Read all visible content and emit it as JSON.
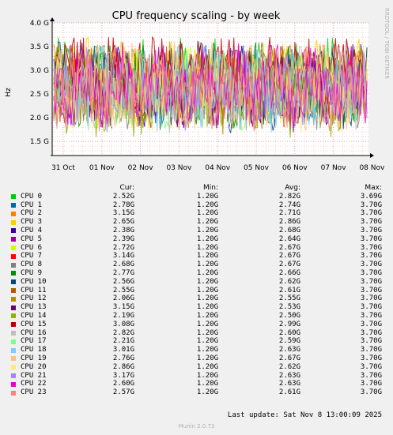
{
  "chart_data": {
    "type": "line",
    "title": "CPU frequency scaling - by week",
    "ylabel": "Hz",
    "side_label": "RRDTOOL / TOBI OETIKER",
    "y_ticks": [
      "1.5 G",
      "2.0 G",
      "2.5 G",
      "3.0 G",
      "3.5 G",
      "4.0 G"
    ],
    "ylim": [
      1.2,
      4.0
    ],
    "x_ticks": [
      "31 Oct",
      "01 Nov",
      "02 Nov",
      "03 Nov",
      "04 Nov",
      "05 Nov",
      "06 Nov",
      "07 Nov",
      "08 Nov"
    ],
    "grid": true,
    "columns": [
      "Cur:",
      "Min:",
      "Avg:",
      "Max:"
    ],
    "series": [
      {
        "name": "CPU 0",
        "color": "#00cc00",
        "cur": "2.52G",
        "min": "1.20G",
        "avg": "2.82G",
        "max": "3.69G"
      },
      {
        "name": "CPU 1",
        "color": "#0066b3",
        "cur": "2.78G",
        "min": "1.20G",
        "avg": "2.74G",
        "max": "3.70G"
      },
      {
        "name": "CPU 2",
        "color": "#ff8000",
        "cur": "3.15G",
        "min": "1.20G",
        "avg": "2.71G",
        "max": "3.70G"
      },
      {
        "name": "CPU 3",
        "color": "#ffcc00",
        "cur": "2.65G",
        "min": "1.20G",
        "avg": "2.86G",
        "max": "3.70G"
      },
      {
        "name": "CPU 4",
        "color": "#330099",
        "cur": "2.38G",
        "min": "1.20G",
        "avg": "2.68G",
        "max": "3.70G"
      },
      {
        "name": "CPU 5",
        "color": "#990099",
        "cur": "2.39G",
        "min": "1.20G",
        "avg": "2.64G",
        "max": "3.70G"
      },
      {
        "name": "CPU 6",
        "color": "#ccff00",
        "cur": "2.72G",
        "min": "1.20G",
        "avg": "2.67G",
        "max": "3.70G"
      },
      {
        "name": "CPU 7",
        "color": "#ff0000",
        "cur": "3.14G",
        "min": "1.20G",
        "avg": "2.67G",
        "max": "3.70G"
      },
      {
        "name": "CPU 8",
        "color": "#808080",
        "cur": "2.68G",
        "min": "1.20G",
        "avg": "2.67G",
        "max": "3.70G"
      },
      {
        "name": "CPU 9",
        "color": "#008f00",
        "cur": "2.77G",
        "min": "1.20G",
        "avg": "2.66G",
        "max": "3.70G"
      },
      {
        "name": "CPU 10",
        "color": "#00487d",
        "cur": "2.56G",
        "min": "1.20G",
        "avg": "2.62G",
        "max": "3.70G"
      },
      {
        "name": "CPU 11",
        "color": "#b35a00",
        "cur": "2.55G",
        "min": "1.20G",
        "avg": "2.61G",
        "max": "3.70G"
      },
      {
        "name": "CPU 12",
        "color": "#b38f00",
        "cur": "2.06G",
        "min": "1.20G",
        "avg": "2.55G",
        "max": "3.70G"
      },
      {
        "name": "CPU 13",
        "color": "#6b006b",
        "cur": "3.15G",
        "min": "1.20G",
        "avg": "2.53G",
        "max": "3.70G"
      },
      {
        "name": "CPU 14",
        "color": "#8fb300",
        "cur": "2.19G",
        "min": "1.20G",
        "avg": "2.50G",
        "max": "3.70G"
      },
      {
        "name": "CPU 15",
        "color": "#b30000",
        "cur": "3.08G",
        "min": "1.20G",
        "avg": "2.99G",
        "max": "3.70G"
      },
      {
        "name": "CPU 16",
        "color": "#bebebe",
        "cur": "2.82G",
        "min": "1.20G",
        "avg": "2.60G",
        "max": "3.70G"
      },
      {
        "name": "CPU 17",
        "color": "#80ff80",
        "cur": "2.21G",
        "min": "1.20G",
        "avg": "2.59G",
        "max": "3.70G"
      },
      {
        "name": "CPU 18",
        "color": "#80c9ff",
        "cur": "3.01G",
        "min": "1.20G",
        "avg": "2.63G",
        "max": "3.70G"
      },
      {
        "name": "CPU 19",
        "color": "#ffc080",
        "cur": "2.76G",
        "min": "1.20G",
        "avg": "2.67G",
        "max": "3.70G"
      },
      {
        "name": "CPU 20",
        "color": "#ffe680",
        "cur": "2.86G",
        "min": "1.20G",
        "avg": "2.62G",
        "max": "3.70G"
      },
      {
        "name": "CPU 21",
        "color": "#aa80ff",
        "cur": "3.17G",
        "min": "1.20G",
        "avg": "2.63G",
        "max": "3.70G"
      },
      {
        "name": "CPU 22",
        "color": "#ee00cc",
        "cur": "2.60G",
        "min": "1.20G",
        "avg": "2.63G",
        "max": "3.70G"
      },
      {
        "name": "CPU 23",
        "color": "#ff8080",
        "cur": "2.57G",
        "min": "1.20G",
        "avg": "2.61G",
        "max": "3.70G"
      }
    ]
  },
  "footer": {
    "last_update": "Last update: Sat Nov  8 13:00:09 2025",
    "munin_version": "Munin 2.0.73"
  }
}
